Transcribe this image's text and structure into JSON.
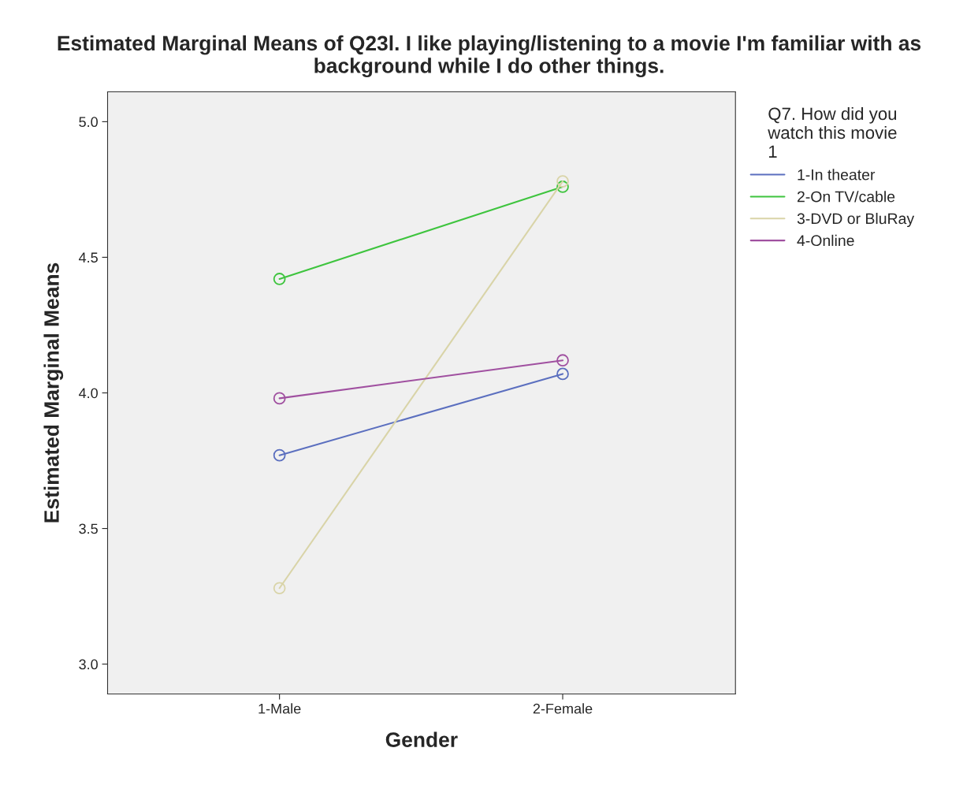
{
  "chart_data": {
    "type": "line",
    "title": "Estimated Marginal Means of Q23l. I like playing/listening to a movie I'm familiar with as background while I do other things.",
    "xlabel": "Gender",
    "ylabel": "Estimated Marginal Means",
    "legend_title": "Q7. How did you\nwatch this movie\n1",
    "categories": [
      "1-Male",
      "2-Female"
    ],
    "series": [
      {
        "name": "1-In theater",
        "color": "#5b6fbf",
        "values": [
          3.77,
          4.07
        ]
      },
      {
        "name": "2-On TV/cable",
        "color": "#3ec43e",
        "values": [
          4.42,
          4.76
        ]
      },
      {
        "name": "3-DVD or BluRay",
        "color": "#d9d4a8",
        "values": [
          3.28,
          4.78
        ]
      },
      {
        "name": "4-Online",
        "color": "#a050a0",
        "values": [
          3.98,
          4.12
        ]
      }
    ],
    "ylim": [
      2.89,
      5.11
    ],
    "yticks": [
      {
        "value": 3.0,
        "label": "3.0"
      },
      {
        "value": 3.5,
        "label": "3.5"
      },
      {
        "value": 4.0,
        "label": "4.0"
      },
      {
        "value": 4.5,
        "label": "4.5"
      },
      {
        "value": 5.0,
        "label": "5.0"
      }
    ],
    "marker": "circle",
    "line_style": "solid",
    "grid": false,
    "legend": "top right"
  }
}
